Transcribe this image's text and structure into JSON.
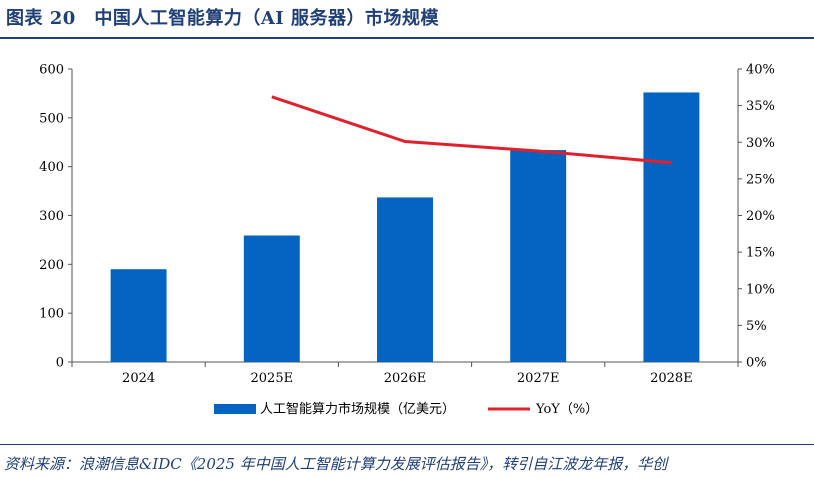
{
  "title": "图表 20　中国人工智能算力（AI 服务器）市场规模",
  "source": "资料来源：浪潮信息&IDC《2025 年中国人工智能计算力发展评估报告》，转引自江波龙年报，华创",
  "colors": {
    "bar": "#0563c1",
    "line": "#e0202a",
    "accent": "#1f3f77"
  },
  "chart_data": {
    "type": "bar",
    "categories": [
      "2024",
      "2025E",
      "2026E",
      "2027E",
      "2028E"
    ],
    "series": [
      {
        "name": "人工智能算力市场规模（亿美元）",
        "type": "bar",
        "axis": "left",
        "values": [
          190,
          259,
          337,
          434,
          552
        ]
      },
      {
        "name": "YoY（%）",
        "type": "line",
        "axis": "right",
        "values": [
          null,
          36.2,
          30.1,
          28.8,
          27.2
        ]
      }
    ],
    "ylim": [
      0,
      600
    ],
    "y_ticks": [
      "0",
      "100",
      "200",
      "300",
      "400",
      "500",
      "600"
    ],
    "y2lim": [
      0,
      40
    ],
    "y2_ticks": [
      "0%",
      "5%",
      "10%",
      "15%",
      "20%",
      "25%",
      "30%",
      "35%",
      "40%"
    ],
    "legend_position": "bottom",
    "grid": false
  }
}
